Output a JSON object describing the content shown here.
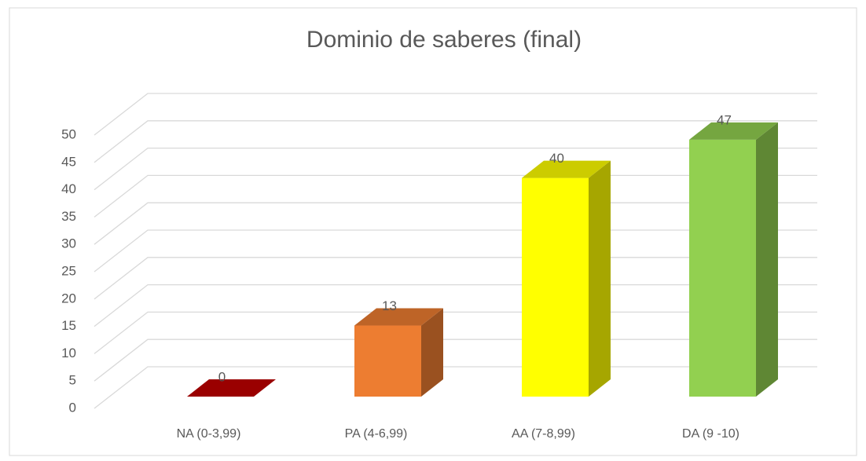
{
  "chart_data": {
    "type": "bar3d",
    "title": "Dominio de saberes (final)",
    "categories": [
      "NA (0-3,99)",
      "PA (4-6,99)",
      "AA (7-8,99)",
      "DA (9 -10)"
    ],
    "values": [
      0,
      13,
      40,
      47
    ],
    "colors": [
      "#c00000",
      "#ed7d31",
      "#ffff00",
      "#92d050"
    ],
    "ylim": [
      0,
      50
    ],
    "yticks": [
      0,
      5,
      10,
      15,
      20,
      25,
      30,
      35,
      40,
      45,
      50
    ],
    "grid": true
  }
}
